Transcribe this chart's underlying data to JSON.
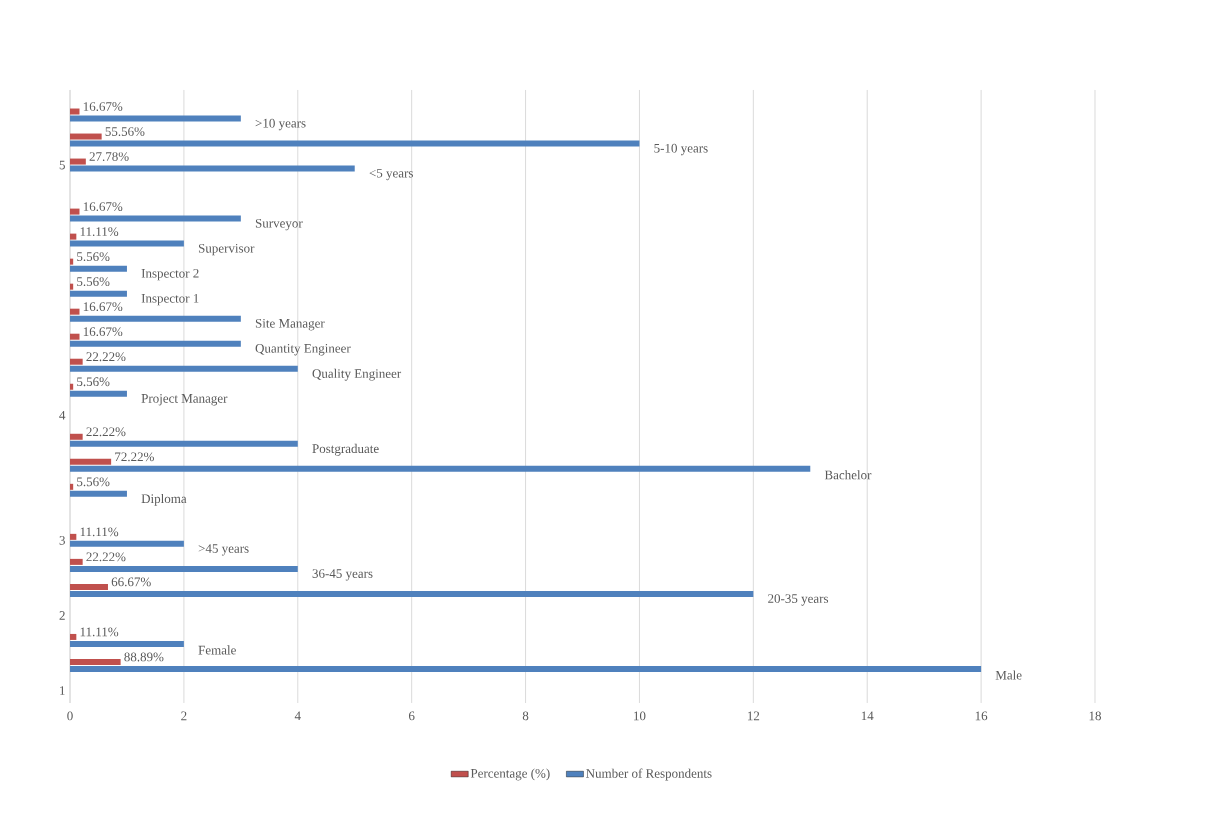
{
  "chart_data": {
    "type": "bar",
    "orientation": "horizontal",
    "categories": [
      null,
      null,
      "5",
      null,
      null,
      null,
      null,
      null,
      null,
      null,
      null,
      null,
      "4",
      null,
      null,
      null,
      null,
      "3",
      null,
      null,
      "2",
      null,
      null,
      "1"
    ],
    "series": [
      {
        "name": "Percentage (%)",
        "color": "#c0504d",
        "values": [
          0.1667,
          0.5556,
          0.2778,
          null,
          0.1667,
          0.1111,
          0.0556,
          0.0556,
          0.1667,
          0.1667,
          0.2222,
          0.0556,
          null,
          0.2222,
          0.7222,
          0.0556,
          null,
          0.1111,
          0.2222,
          0.6667,
          null,
          0.1111,
          0.8889,
          null
        ],
        "value_labels": [
          "16.67%",
          "55.56%",
          "27.78%",
          null,
          "16.67%",
          "11.11%",
          "5.56%",
          "5.56%",
          "16.67%",
          "16.67%",
          "22.22%",
          "5.56%",
          null,
          "22.22%",
          "72.22%",
          "5.56%",
          null,
          "11.11%",
          "22.22%",
          "66.67%",
          null,
          "11.11%",
          "88.89%",
          null
        ]
      },
      {
        "name": "Number of Respondents",
        "color": "#4f81bd",
        "values": [
          3,
          10,
          5,
          null,
          3,
          2,
          1,
          1,
          3,
          3,
          4,
          1,
          null,
          4,
          13,
          1,
          null,
          2,
          4,
          12,
          null,
          2,
          16,
          null
        ],
        "value_labels": [
          ">10 years",
          "5-10 years",
          "<5 years",
          null,
          "Surveyor",
          "Supervisor",
          "Inspector 2",
          "Inspector 1",
          "Site Manager",
          "Quantity Engineer",
          "Quality Engineer",
          "Project Manager",
          null,
          "Postgraduate",
          "Bachelor",
          "Diploma",
          null,
          ">45 years",
          "36-45 years",
          "20-35 years",
          null,
          "Female",
          "Male",
          null
        ]
      }
    ],
    "xlim": [
      0,
      18
    ],
    "xticks": [
      0,
      2,
      4,
      6,
      8,
      10,
      12,
      14,
      16,
      18
    ],
    "grid": "x",
    "legend": "bottom"
  }
}
